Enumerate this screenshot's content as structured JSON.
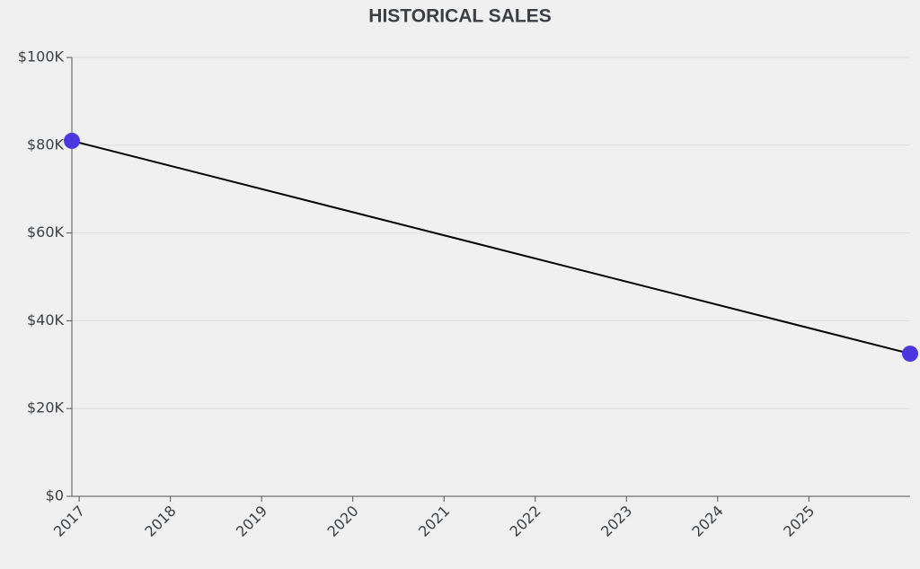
{
  "chart_data": {
    "type": "line",
    "title": "HISTORICAL SALES",
    "x": [
      2016.92,
      2026.11
    ],
    "series": [
      {
        "name": "Sales",
        "color": "#4b37e0",
        "values": [
          81000,
          32500
        ]
      }
    ],
    "xlim": [
      2016.92,
      2026.11
    ],
    "xticks": [
      2017,
      2018,
      2019,
      2020,
      2021,
      2022,
      2023,
      2024,
      2025
    ],
    "ylim": [
      0,
      100000
    ],
    "yticks": [
      {
        "value": 0,
        "label": "$0"
      },
      {
        "value": 20000,
        "label": "$20K"
      },
      {
        "value": 40000,
        "label": "$40K"
      },
      {
        "value": 60000,
        "label": "$60K"
      },
      {
        "value": 80000,
        "label": "$80K"
      },
      {
        "value": 100000,
        "label": "$100K"
      }
    ],
    "grid": true
  }
}
